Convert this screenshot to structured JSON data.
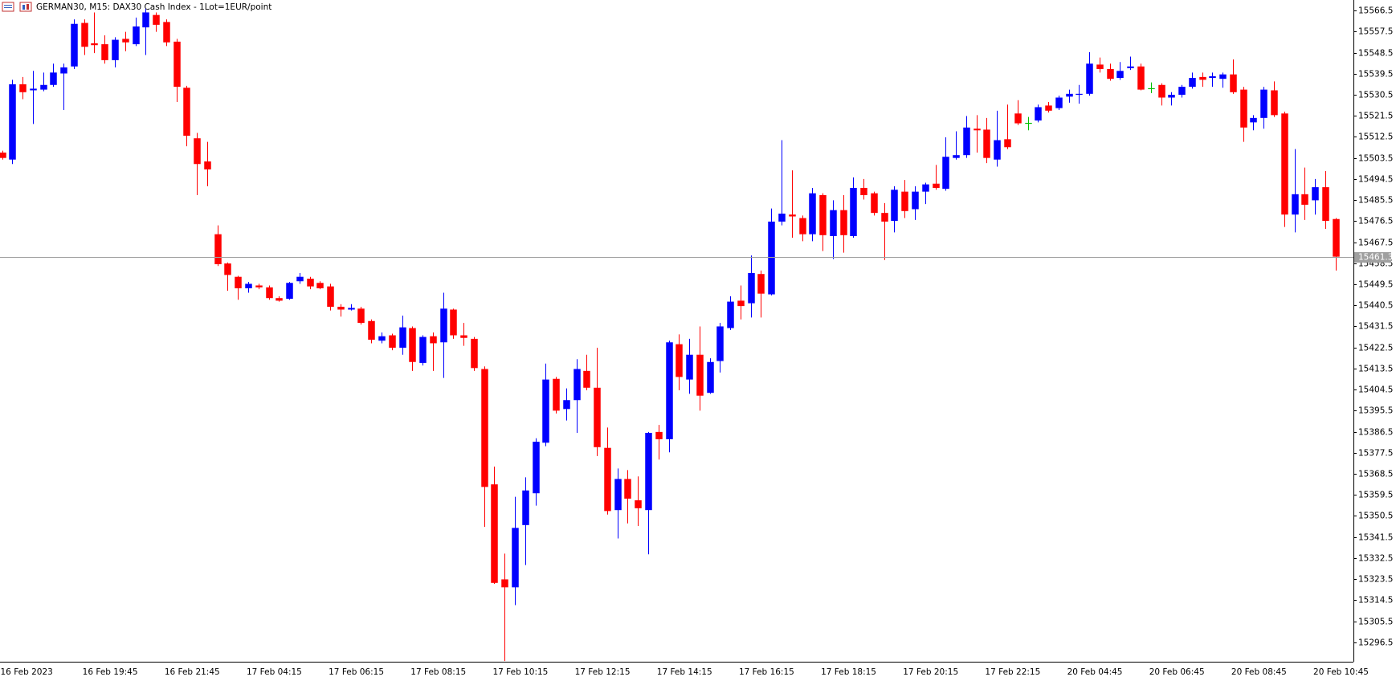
{
  "chart_data": {
    "type": "candlestick",
    "title": "GERMAN30, M15:  DAX30 Cash Index  - 1Lot=1EUR/point",
    "up_color": "#0000ff",
    "down_color": "#ff0000",
    "doji_color": "#00c000",
    "categories": [
      "16 Feb 2023",
      null,
      null,
      null,
      null,
      null,
      null,
      null,
      "16 Feb 19:45",
      null,
      null,
      null,
      null,
      null,
      null,
      null,
      "16 Feb 21:45",
      null,
      null,
      null,
      null,
      null,
      null,
      null,
      "17 Feb 04:15",
      null,
      null,
      null,
      null,
      null,
      null,
      null,
      "17 Feb 06:15",
      null,
      null,
      null,
      null,
      null,
      null,
      null,
      "17 Feb 08:15",
      null,
      null,
      null,
      null,
      null,
      null,
      null,
      "17 Feb 10:15",
      null,
      null,
      null,
      null,
      null,
      null,
      null,
      "17 Feb 12:15",
      null,
      null,
      null,
      null,
      null,
      null,
      null,
      "17 Feb 14:15",
      null,
      null,
      null,
      null,
      null,
      null,
      null,
      "17 Feb 16:15",
      null,
      null,
      null,
      null,
      null,
      null,
      null,
      "17 Feb 18:15",
      null,
      null,
      null,
      null,
      null,
      null,
      null,
      "17 Feb 20:15",
      null,
      null,
      null,
      null,
      null,
      null,
      null,
      "17 Feb 22:15",
      null,
      null,
      null,
      null,
      null,
      null,
      null,
      "20 Feb 04:45",
      null,
      null,
      null,
      null,
      null,
      null,
      null,
      "20 Feb 06:45",
      null,
      null,
      null,
      null,
      null,
      null,
      null,
      "20 Feb 08:45",
      null,
      null,
      null,
      null,
      null,
      null,
      null,
      "20 Feb 10:45",
      null,
      null
    ],
    "open": [
      15505.8,
      15502.8,
      15535.0,
      15532.4,
      15532.7,
      15534.7,
      15539.6,
      15542.6,
      15561.2,
      15552.5,
      15552.1,
      15545.3,
      15554.4,
      15552.1,
      15559.3,
      15564.6,
      15561.6,
      15553.2,
      15533.5,
      15511.9,
      15502.0,
      15470.9,
      15458.4,
      15452.7,
      15447.8,
      15449.0,
      15448.2,
      15443.6,
      15443.3,
      15450.8,
      15451.9,
      15450.1,
      15448.6,
      15439.9,
      15438.7,
      15439.1,
      15433.8,
      15425.4,
      15427.7,
      15422.4,
      15430.8,
      15415.9,
      15427.3,
      15424.7,
      15438.7,
      15427.7,
      15426.2,
      15413.3,
      15364.0,
      15323.4,
      15320.0,
      15346.6,
      15360.2,
      15381.8,
      15409.1,
      15396.2,
      15400.0,
      15412.5,
      15405.3,
      15379.6,
      15353.0,
      15366.3,
      15357.2,
      15353.0,
      15386.4,
      15383.3,
      15423.9,
      15408.8,
      15419.4,
      15403.1,
      15416.7,
      15430.8,
      15442.5,
      15441.4,
      15453.9,
      15445.2,
      15476.3,
      15479.3,
      15477.8,
      15470.9,
      15487.6,
      15470.1,
      15481.2,
      15470.1,
      15490.7,
      15488.4,
      15480.0,
      15476.6,
      15489.1,
      15481.6,
      15489.1,
      15492.5,
      15490.3,
      15503.5,
      15504.7,
      15516.0,
      15515.6,
      15502.8,
      15511.5,
      15522.5,
      15518.3,
      15519.5,
      15525.9,
      15524.8,
      15529.7,
      15530.5,
      15530.9,
      15543.4,
      15541.5,
      15537.7,
      15541.9,
      15542.6,
      15533.1,
      15534.7,
      15529.3,
      15530.5,
      15533.9,
      15538.1,
      15537.7,
      15537.3,
      15539.2,
      15532.7,
      15518.7,
      15520.6,
      15532.4,
      15522.5,
      15479.3,
      15488.0,
      15485.4,
      15491.0,
      15477.4
    ],
    "high": [
      15506.6,
      15536.9,
      15538.1,
      15540.7,
      15540.0,
      15543.8,
      15543.8,
      15562.7,
      15562.7,
      15565.7,
      15555.9,
      15555.1,
      15557.4,
      15563.5,
      15567.3,
      15565.7,
      15562.7,
      15554.4,
      15534.3,
      15514.2,
      15510.4,
      15474.7,
      15458.8,
      15453.1,
      15450.5,
      15449.7,
      15449.0,
      15444.4,
      15450.5,
      15454.3,
      15452.7,
      15450.8,
      15449.7,
      15441.0,
      15441.0,
      15439.9,
      15434.5,
      15428.9,
      15428.4,
      15436.1,
      15431.5,
      15427.7,
      15428.9,
      15445.9,
      15439.1,
      15433.0,
      15427.0,
      15414.4,
      15371.6,
      15334.4,
      15358.7,
      15367.0,
      15383.7,
      15415.6,
      15409.9,
      15405.0,
      15417.5,
      15419.4,
      15422.4,
      15388.3,
      15370.8,
      15370.1,
      15367.4,
      15386.4,
      15389.4,
      15425.4,
      15428.1,
      15426.2,
      15431.5,
      15417.9,
      15433.0,
      15444.4,
      15449.0,
      15461.8,
      15455.4,
      15481.9,
      15511.1,
      15498.2,
      15478.9,
      15490.7,
      15488.4,
      15485.4,
      15487.6,
      15495.2,
      15494.5,
      15489.1,
      15484.2,
      15491.4,
      15494.1,
      15491.4,
      15492.9,
      15500.5,
      15512.3,
      15514.9,
      15521.4,
      15521.8,
      15520.6,
      15523.7,
      15526.3,
      15528.2,
      15521.0,
      15526.3,
      15527.4,
      15530.1,
      15532.7,
      15534.7,
      15548.7,
      15546.4,
      15543.8,
      15544.5,
      15546.8,
      15543.8,
      15535.8,
      15535.4,
      15531.6,
      15534.7,
      15540.0,
      15540.0,
      15540.0,
      15540.0,
      15545.6,
      15533.9,
      15521.8,
      15533.9,
      15536.2,
      15523.3,
      15507.3,
      15499.4,
      15494.5,
      15497.9,
      15477.8
    ],
    "low": [
      15502.8,
      15500.9,
      15528.6,
      15518.0,
      15532.0,
      15533.9,
      15524.0,
      15541.5,
      15547.5,
      15548.3,
      15543.8,
      15542.2,
      15549.1,
      15551.3,
      15547.5,
      15557.4,
      15551.3,
      15527.4,
      15508.5,
      15487.6,
      15491.4,
      15457.3,
      15446.7,
      15442.9,
      15445.9,
      15447.4,
      15442.9,
      15442.1,
      15442.9,
      15449.7,
      15447.4,
      15447.4,
      15438.3,
      15435.7,
      15438.3,
      15432.3,
      15424.3,
      15424.3,
      15421.3,
      15419.4,
      15412.5,
      15414.8,
      15412.5,
      15409.5,
      15426.2,
      15423.2,
      15412.5,
      15345.8,
      15321.5,
      15288.5,
      15312.4,
      15329.5,
      15354.9,
      15380.3,
      15394.3,
      15391.3,
      15386.0,
      15404.2,
      15376.1,
      15351.1,
      15340.9,
      15347.3,
      15346.2,
      15334.1,
      15374.6,
      15377.7,
      15404.2,
      15402.7,
      15395.5,
      15402.7,
      15411.8,
      15430.0,
      15434.5,
      15435.3,
      15435.3,
      15444.8,
      15474.7,
      15469.4,
      15467.9,
      15467.9,
      15463.7,
      15460.3,
      15463.0,
      15469.4,
      15485.7,
      15478.9,
      15459.9,
      15471.7,
      15477.8,
      15477.0,
      15483.8,
      15489.9,
      15489.5,
      15502.8,
      15503.5,
      15505.8,
      15501.3,
      15499.8,
      15507.3,
      15517.6,
      15515.3,
      15518.7,
      15522.9,
      15524.0,
      15527.1,
      15526.7,
      15530.1,
      15540.0,
      15536.5,
      15536.9,
      15541.1,
      15532.4,
      15531.2,
      15525.9,
      15525.9,
      15529.3,
      15533.1,
      15533.9,
      15533.9,
      15533.5,
      15530.9,
      15510.4,
      15515.3,
      15516.0,
      15521.0,
      15474.0,
      15471.7,
      15477.0,
      15479.3,
      15473.2,
      15455.4
    ],
    "close": [
      15503.5,
      15535.0,
      15531.6,
      15533.1,
      15534.7,
      15540.0,
      15542.2,
      15560.8,
      15551.0,
      15551.7,
      15545.3,
      15554.0,
      15552.9,
      15559.7,
      15565.7,
      15560.4,
      15552.9,
      15533.9,
      15513.0,
      15500.9,
      15498.6,
      15458.1,
      15453.5,
      15447.8,
      15449.7,
      15448.2,
      15443.6,
      15442.5,
      15450.1,
      15452.7,
      15448.6,
      15447.8,
      15439.9,
      15438.7,
      15439.4,
      15433.0,
      15425.8,
      15427.3,
      15422.4,
      15431.1,
      15416.3,
      15427.0,
      15424.3,
      15439.1,
      15427.7,
      15426.6,
      15413.7,
      15362.9,
      15321.9,
      15320.0,
      15345.4,
      15361.4,
      15382.2,
      15408.8,
      15395.5,
      15400.0,
      15413.3,
      15405.3,
      15379.9,
      15352.6,
      15366.3,
      15357.9,
      15353.8,
      15386.0,
      15383.3,
      15424.7,
      15409.9,
      15419.4,
      15401.9,
      15416.3,
      15431.5,
      15442.1,
      15440.2,
      15454.3,
      15445.5,
      15476.3,
      15479.7,
      15478.5,
      15470.9,
      15488.4,
      15470.5,
      15481.2,
      15470.5,
      15490.7,
      15487.6,
      15480.0,
      15476.3,
      15489.9,
      15480.8,
      15489.1,
      15492.2,
      15490.7,
      15504.0,
      15504.7,
      15516.5,
      15515.3,
      15503.5,
      15511.1,
      15508.1,
      15518.3,
      15518.3,
      15525.2,
      15523.7,
      15529.3,
      15530.9,
      15530.9,
      15543.8,
      15541.5,
      15537.3,
      15540.7,
      15542.6,
      15532.7,
      15533.1,
      15529.3,
      15530.5,
      15533.9,
      15537.7,
      15536.9,
      15538.4,
      15539.2,
      15531.6,
      15516.5,
      15520.6,
      15532.7,
      15521.8,
      15479.3,
      15488.0,
      15483.5,
      15491.0,
      15476.6,
      15461.3
    ],
    "current_price": 15461.3,
    "ylim": [
      15288.2,
      15571.0
    ],
    "yticks": [
      15296.5,
      15305.5,
      15314.5,
      15323.5,
      15332.5,
      15341.5,
      15350.5,
      15359.5,
      15368.5,
      15377.5,
      15386.5,
      15395.5,
      15404.5,
      15413.5,
      15422.5,
      15431.5,
      15440.5,
      15449.5,
      15458.5,
      15467.5,
      15476.5,
      15485.5,
      15494.5,
      15503.5,
      15512.5,
      15521.5,
      15530.5,
      15539.5,
      15548.5,
      15557.5,
      15566.5
    ]
  }
}
